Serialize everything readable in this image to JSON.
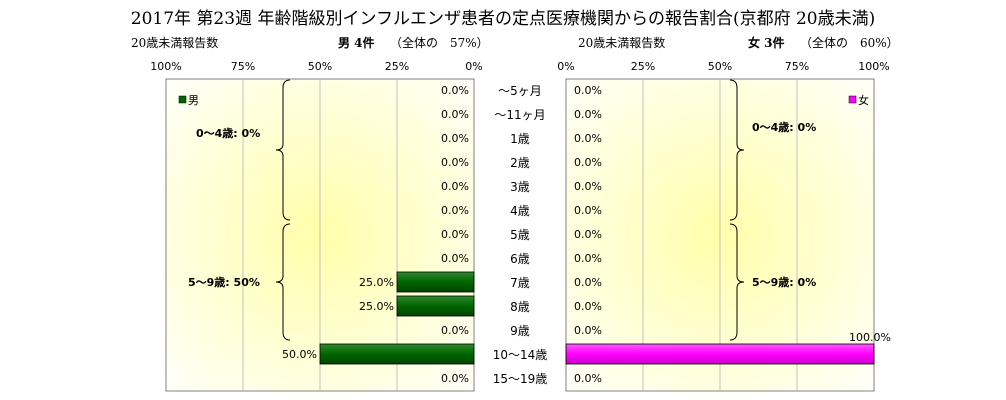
{
  "title": "2017年 第23週 年齢階級別インフルエンザ患者の定点医療機関からの報告割合(京都府 20歳未満)",
  "male_header": {
    "left_label": "20歳未満報告数",
    "gender_count": "男 4件",
    "share": "（全体の　57%）"
  },
  "female_header": {
    "left_label": "20歳未満報告数",
    "gender_count": "女 3件",
    "share": "（全体の　60%）"
  },
  "chart_data": {
    "type": "bar",
    "orientation": "horizontal-butterfly",
    "categories": [
      "～5ヶ月",
      "～11ヶ月",
      "1歳",
      "2歳",
      "3歳",
      "4歳",
      "5歳",
      "6歳",
      "7歳",
      "8歳",
      "9歳",
      "10～14歳",
      "15～19歳"
    ],
    "series": [
      {
        "name": "男",
        "color": "#006600",
        "values": [
          0,
          0,
          0,
          0,
          0,
          0,
          0,
          0,
          25,
          25,
          0,
          50,
          0
        ],
        "labels": [
          "0.0%",
          "0.0%",
          "0.0%",
          "0.0%",
          "0.0%",
          "0.0%",
          "0.0%",
          "0.0%",
          "25.0%",
          "25.0%",
          "0.0%",
          "50.0%",
          "0.0%"
        ]
      },
      {
        "name": "女",
        "color": "#ff00ff",
        "values": [
          0,
          0,
          0,
          0,
          0,
          0,
          0,
          0,
          0,
          0,
          0,
          100,
          0
        ],
        "labels": [
          "0.0%",
          "0.0%",
          "0.0%",
          "0.0%",
          "0.0%",
          "0.0%",
          "0.0%",
          "0.0%",
          "0.0%",
          "0.0%",
          "0.0%",
          "100.0%",
          "0.0%"
        ]
      }
    ],
    "male_axis_ticks": [
      "100%",
      "75%",
      "50%",
      "25%",
      "0%"
    ],
    "female_axis_ticks": [
      "0%",
      "25%",
      "50%",
      "75%",
      "100%"
    ],
    "xlim": [
      0,
      100
    ],
    "grid": true,
    "legend_placement": "top-inside",
    "annotations": {
      "male": [
        "0～4歳: 0%",
        "5～9歳: 50%"
      ],
      "female": [
        "0～4歳: 0%",
        "5～9歳: 0%"
      ]
    },
    "group_ranges": [
      [
        0,
        5
      ],
      [
        6,
        10
      ]
    ]
  }
}
